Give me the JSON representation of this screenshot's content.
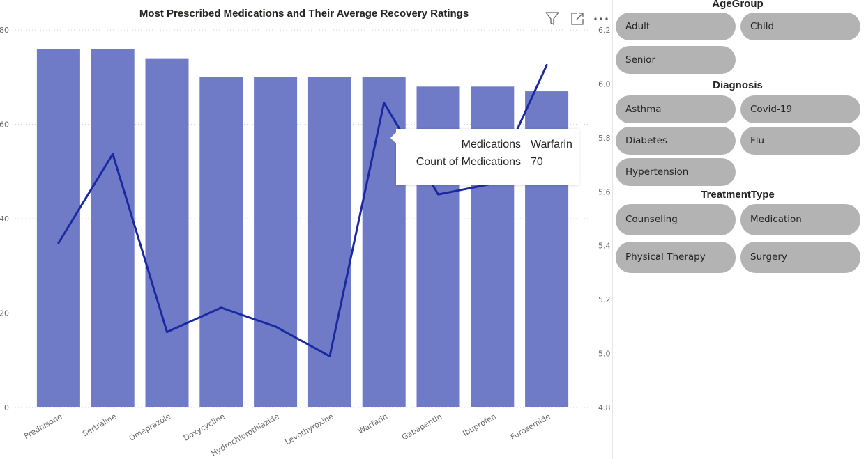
{
  "chart_panel": {
    "title": "Most Prescribed Medications and Their Average Recovery Ratings",
    "header_icons": [
      "filter-icon",
      "focus-mode-icon",
      "more-options-icon"
    ]
  },
  "chart_data": {
    "type": "bar",
    "title": "Most Prescribed Medications and Their Average Recovery Ratings",
    "xlabel": "",
    "ylabel": "",
    "categories": [
      "Prednisone",
      "Sertraline",
      "Omeprazole",
      "Doxycycline",
      "Hydrochlorothiazide",
      "Levothyroxine",
      "Warfarin",
      "Gabapentin",
      "Ibuprofen",
      "Furosemide"
    ],
    "series": [
      {
        "type": "bar",
        "axis": "left",
        "values": [
          76,
          76,
          74,
          70,
          70,
          70,
          70,
          68,
          68,
          67
        ],
        "color": "#6f7bc6"
      },
      {
        "type": "line",
        "axis": "right",
        "values": [
          5.41,
          5.74,
          5.08,
          5.17,
          5.1,
          4.99,
          5.93,
          5.59,
          5.63,
          6.07
        ],
        "color": "#1b29a1"
      }
    ],
    "ylim_left": [
      0,
      80
    ],
    "yticks_left": [
      "0",
      "20",
      "40",
      "60",
      "80"
    ],
    "ylim_right": [
      4.8,
      6.2
    ],
    "yticks_right": [
      "4.8",
      "5.0",
      "5.2",
      "5.4",
      "5.6",
      "5.8",
      "6.0",
      "6.2"
    ],
    "grid": true,
    "legend": "none"
  },
  "tooltip": {
    "rows": [
      {
        "key": "Medications",
        "value": "Warfarin"
      },
      {
        "key": "Count of Medications",
        "value": "70"
      }
    ]
  },
  "slicers": {
    "age_group": {
      "title": "AgeGroup",
      "options": [
        "Adult",
        "Child",
        "Senior"
      ]
    },
    "diagnosis": {
      "title": "Diagnosis",
      "options": [
        "Asthma",
        "Covid-19",
        "Diabetes",
        "Flu",
        "Hypertension"
      ]
    },
    "treatment_type": {
      "title": "TreatmentType",
      "options": [
        "Counseling",
        "Medication",
        "Physical Therapy",
        "Surgery"
      ]
    },
    "chip_color": "#b3b3b3"
  }
}
